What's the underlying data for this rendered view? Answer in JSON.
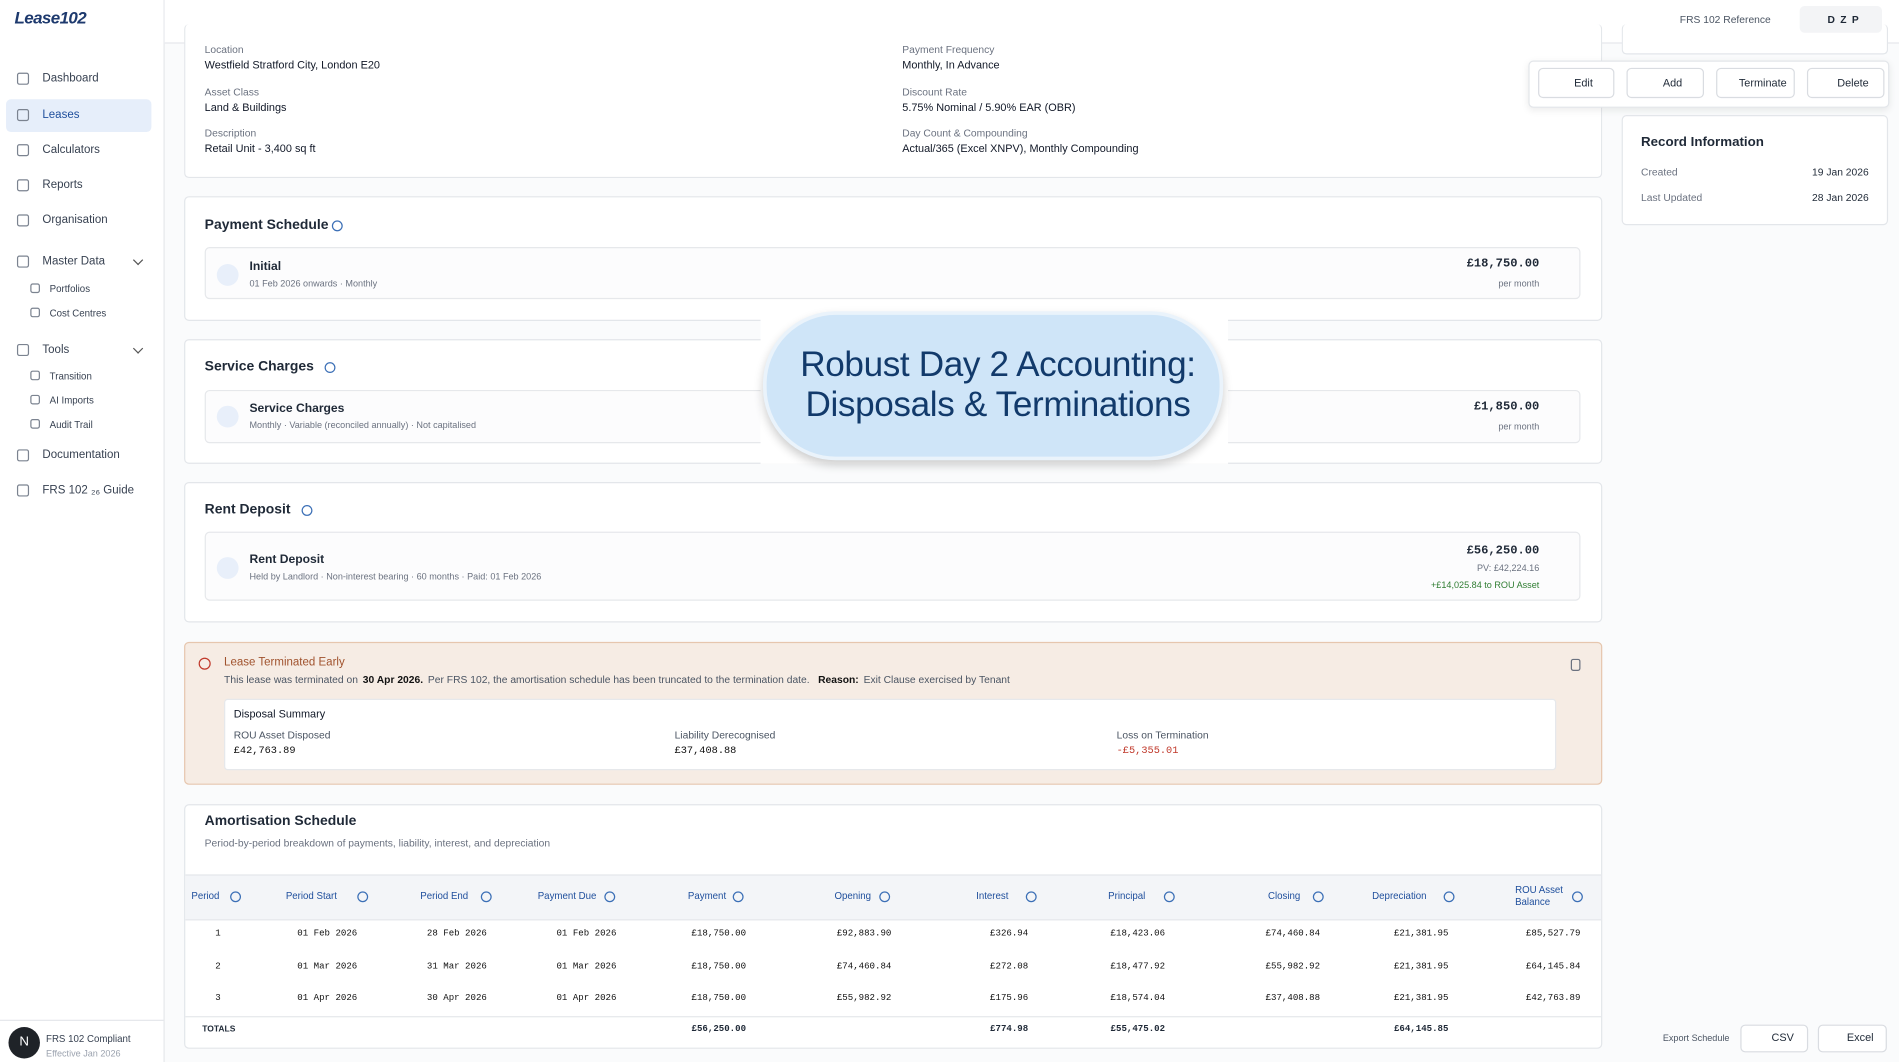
{
  "brand": "Lease102",
  "nav": [
    "Dashboard",
    "Leases",
    "Calculators",
    "Reports",
    "Organisation",
    "Master Data",
    "Portfolios",
    "Cost Centres",
    "Tools",
    "Transition",
    "AI Imports",
    "Audit Trail",
    "Documentation",
    "FRS 102 ₂₆ Guide"
  ],
  "footer": {
    "avatar": "N",
    "title": "FRS 102 Compliant",
    "subtitle": "Effective Jan 2026"
  },
  "header": {
    "reference": "FRS 102 Reference",
    "user": "D Z P"
  },
  "details": [
    {
      "label": "Location",
      "value": "Westfield Stratford City, London E20"
    },
    {
      "label": "Asset Class",
      "value": "Land & Buildings"
    },
    {
      "label": "Description",
      "value": "Retail Unit - 3,400 sq ft"
    },
    {
      "label": "Payment Frequency",
      "value": "Monthly, In Advance"
    },
    {
      "label": "Discount Rate",
      "value": "5.75% Nominal / 5.90% EAR (OBR)"
    },
    {
      "label": "Day Count & Compounding",
      "value": "Actual/365 (Excel XNPV), Monthly Compounding"
    }
  ],
  "actions": [
    "Edit",
    "Add",
    "Terminate",
    "Delete"
  ],
  "record": {
    "title": "Record Information",
    "rows": [
      {
        "label": "Created",
        "value": "19 Jan 2026"
      },
      {
        "label": "Last Updated",
        "value": "28 Jan 2026"
      }
    ]
  },
  "payment_schedule": {
    "title": "Payment Schedule",
    "name": "Initial",
    "detail": "01 Feb 2026 onwards · Monthly",
    "amount": "£18,750.00",
    "unit": "per month"
  },
  "service_charges": {
    "title": "Service Charges",
    "name": "Service Charges",
    "detail": "Monthly · Variable (reconciled annually) · Not capitalised",
    "amount": "£1,850.00",
    "unit": "per month"
  },
  "rent_deposit": {
    "title": "Rent Deposit",
    "name": "Rent Deposit",
    "detail": "Held by Landlord · Non-interest bearing · 60 months · Paid: 01 Feb 2026",
    "amount": "£56,250.00",
    "pv": "PV: £42,224.16",
    "rou": "+£14,025.84 to ROU Asset"
  },
  "termination": {
    "title": "Lease Terminated Early",
    "text_start": "This lease was terminated on",
    "date": "30 Apr 2026.",
    "text_rest": "Per FRS 102, the amortisation schedule has been truncated to the termination date.",
    "reason_label": "Reason:",
    "reason": "Exit Clause exercised by Tenant",
    "summary_title": "Disposal Summary",
    "summary": [
      {
        "label": "ROU Asset Disposed",
        "value": "£42,763.89"
      },
      {
        "label": "Liability Derecognised",
        "value": "£37,408.88"
      },
      {
        "label": "Loss on Termination",
        "value": "-£5,355.01"
      }
    ]
  },
  "amortisation": {
    "title": "Amortisation Schedule",
    "subtitle": "Period-by-period breakdown of payments, liability, interest, and depreciation",
    "columns": [
      "Period",
      "Period Start",
      "Period End",
      "Payment Due",
      "Payment",
      "Opening",
      "Interest",
      "Principal",
      "Closing",
      "Depreciation",
      "ROU Asset Balance"
    ],
    "rows": [
      [
        "1",
        "01 Feb 2026",
        "28 Feb 2026",
        "01 Feb 2026",
        "£18,750.00",
        "£92,883.90",
        "£326.94",
        "£18,423.06",
        "£74,460.84",
        "£21,381.95",
        "£85,527.79"
      ],
      [
        "2",
        "01 Mar 2026",
        "31 Mar 2026",
        "01 Mar 2026",
        "£18,750.00",
        "£74,460.84",
        "£272.08",
        "£18,477.92",
        "£55,982.92",
        "£21,381.95",
        "£64,145.84"
      ],
      [
        "3",
        "01 Apr 2026",
        "30 Apr 2026",
        "01 Apr 2026",
        "£18,750.00",
        "£55,982.92",
        "£175.96",
        "£18,574.04",
        "£37,408.88",
        "£21,381.95",
        "£42,763.89"
      ]
    ],
    "totals": {
      "label": "TOTALS",
      "payment": "£56,250.00",
      "interest": "£774.98",
      "principal": "£55,475.02",
      "depreciation": "£64,145.85"
    }
  },
  "banner": [
    "Robust Day 2 Accounting:",
    "Disposals & Terminations"
  ],
  "export": {
    "label": "Export Schedule",
    "csv": "CSV",
    "excel": "Excel"
  }
}
